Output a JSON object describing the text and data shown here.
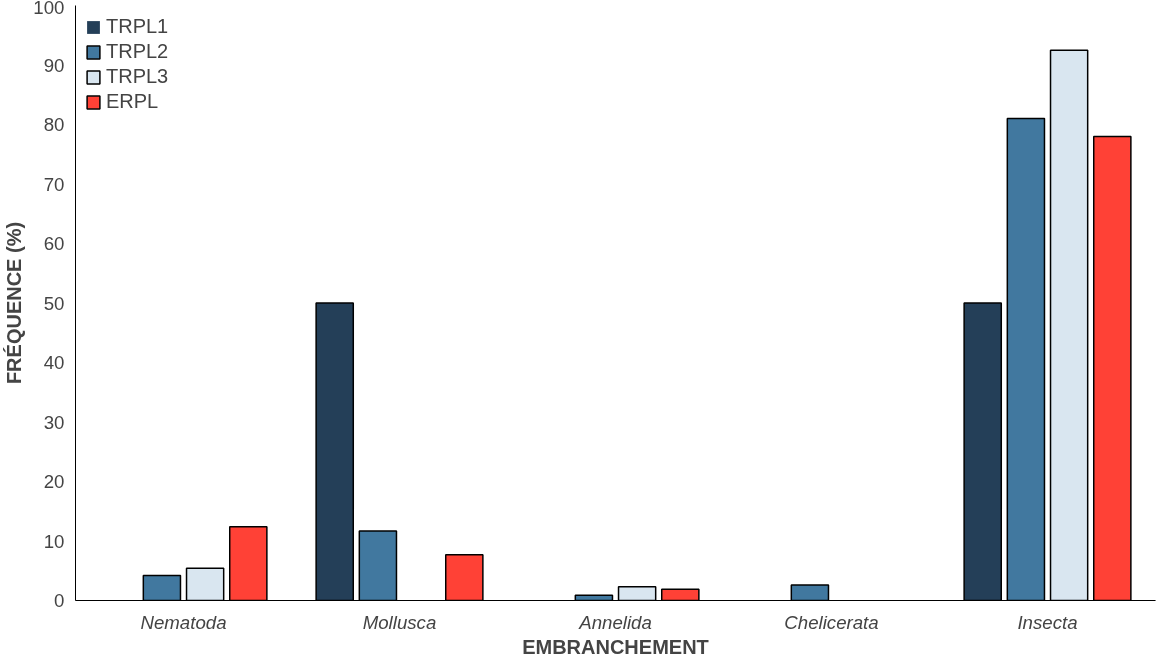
{
  "chart_data": {
    "type": "bar",
    "xlabel": "EMBRANCHEMENT",
    "ylabel": "FRÉQUENCE (%)",
    "categories": [
      "Nematoda",
      "Mollusca",
      "Annelida",
      "Chelicerata",
      "Insecta"
    ],
    "series": [
      {
        "name": "TRPL1",
        "color": "#243f58",
        "values": [
          0,
          50,
          0,
          0,
          50
        ]
      },
      {
        "name": "TRPL2",
        "color": "#41789f",
        "values": [
          4.2,
          11.7,
          0.9,
          2.6,
          81
        ]
      },
      {
        "name": "TRPL3",
        "color": "#d9e6f0",
        "values": [
          5.4,
          0,
          2.3,
          0,
          92.5
        ]
      },
      {
        "name": "ERPL",
        "color": "#ff4136",
        "values": [
          12.4,
          7.7,
          1.9,
          0,
          78
        ]
      }
    ],
    "ylim": [
      0,
      100
    ],
    "yticks": [
      0,
      10,
      20,
      30,
      40,
      50,
      60,
      70,
      80,
      90,
      100
    ],
    "grid": false,
    "legend": "top left"
  }
}
